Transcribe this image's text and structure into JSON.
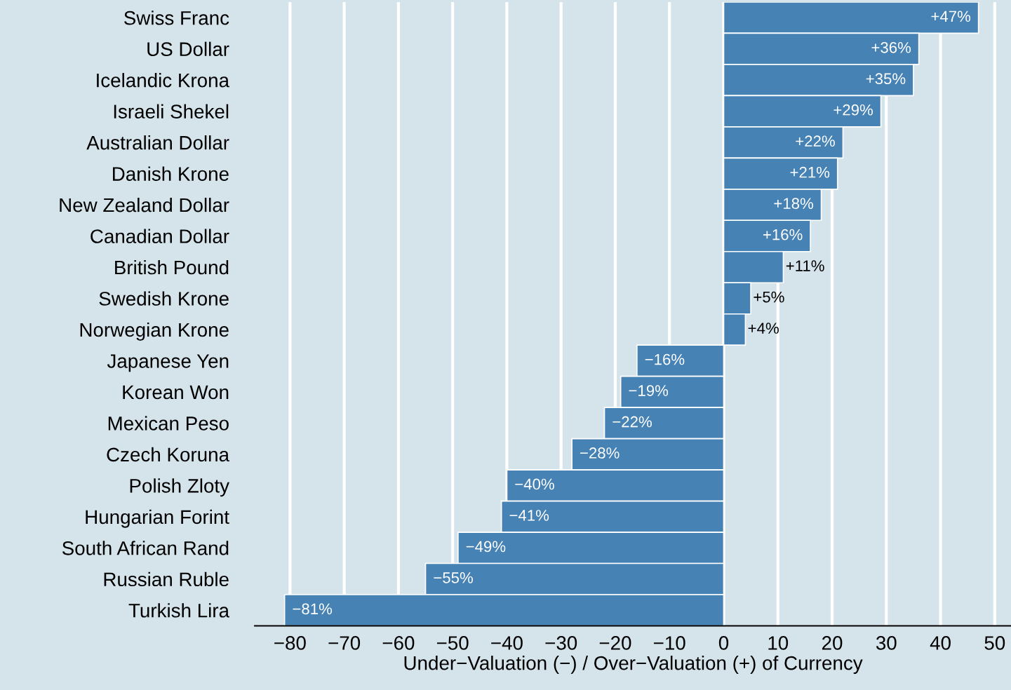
{
  "chart_data": {
    "type": "bar",
    "orientation": "horizontal",
    "categories": [
      "Swiss Franc",
      "US Dollar",
      "Icelandic Krona",
      "Israeli Shekel",
      "Australian Dollar",
      "Danish Krone",
      "New Zealand Dollar",
      "Canadian Dollar",
      "British Pound",
      "Swedish Krone",
      "Norwegian Krone",
      "Japanese Yen",
      "Korean Won",
      "Mexican Peso",
      "Czech Koruna",
      "Polish Zloty",
      "Hungarian Forint",
      "South African Rand",
      "Russian Ruble",
      "Turkish Lira"
    ],
    "values": [
      47,
      36,
      35,
      29,
      22,
      21,
      18,
      16,
      11,
      5,
      4,
      -16,
      -19,
      -22,
      -28,
      -40,
      -41,
      -49,
      -55,
      -81
    ],
    "value_labels": [
      "+47%",
      "+36%",
      "+35%",
      "+29%",
      "+22%",
      "+21%",
      "+18%",
      "+16%",
      "+11%",
      "+5%",
      "+4%",
      "−16%",
      "−19%",
      "−22%",
      "−28%",
      "−40%",
      "−41%",
      "−49%",
      "−55%",
      "−81%"
    ],
    "color": "#4682b4",
    "xlabel": "Under−Valuation (−) / Over−Valuation (+) of Currency",
    "xlim": [
      -86.5,
      53
    ],
    "xticks": [
      {
        "value": -80,
        "label": "−80"
      },
      {
        "value": -70,
        "label": "−70"
      },
      {
        "value": -60,
        "label": "−60"
      },
      {
        "value": -50,
        "label": "−50"
      },
      {
        "value": -40,
        "label": "−40"
      },
      {
        "value": -30,
        "label": "−30"
      },
      {
        "value": -20,
        "label": "−20"
      },
      {
        "value": -10,
        "label": "−10"
      },
      0,
      10,
      20,
      30,
      40,
      50
    ],
    "grid": "x",
    "legend": false
  }
}
